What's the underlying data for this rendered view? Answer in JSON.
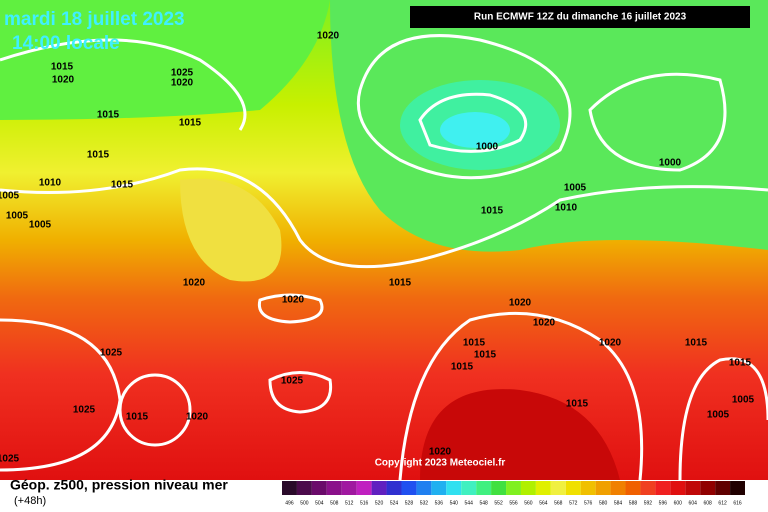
{
  "header": {
    "date": "mardi 18 juillet 2023",
    "time": "14:00 locale",
    "run": "Run ECMWF 12Z du dimanche 16 juillet 2023"
  },
  "footer": {
    "title": "Géop. z500, pression niveau mer",
    "lead": "(+48h)",
    "copyright": "Copyright 2023 Meteociel.fr"
  },
  "legend": {
    "values": [
      496,
      500,
      504,
      508,
      512,
      516,
      520,
      524,
      528,
      532,
      536,
      540,
      544,
      548,
      552,
      556,
      560,
      564,
      568,
      572,
      576,
      580,
      584,
      588,
      592,
      596,
      600,
      604,
      608,
      612,
      616
    ],
    "colors": [
      "#2a0a2a",
      "#4b0a4b",
      "#6a0a6a",
      "#8a108a",
      "#a018a0",
      "#c020c0",
      "#6020c0",
      "#3030d0",
      "#2050f0",
      "#2080f0",
      "#20b0f0",
      "#30e0f0",
      "#40f0c0",
      "#40f080",
      "#40e040",
      "#80f020",
      "#b0f000",
      "#e0f000",
      "#f0f040",
      "#f0e000",
      "#f0c000",
      "#f0a000",
      "#f08000",
      "#f06000",
      "#f04020",
      "#f02020",
      "#e01010",
      "#c00808",
      "#900000",
      "#600000",
      "#200000"
    ]
  },
  "isobar_labels": [
    "1020",
    "1015",
    "1020",
    "1025",
    "1020",
    "1015",
    "1015",
    "1015",
    "1010",
    "1015",
    "1005",
    "1005",
    "1005",
    "1000",
    "1000",
    "1005",
    "1015",
    "1010",
    "1020",
    "1020",
    "1015",
    "1020",
    "1020",
    "1015",
    "1015",
    "1020",
    "1015",
    "1025",
    "1015",
    "1025",
    "1015",
    "1025",
    "1015",
    "1020",
    "1015",
    "1005",
    "1005",
    "1020",
    "1025"
  ]
}
